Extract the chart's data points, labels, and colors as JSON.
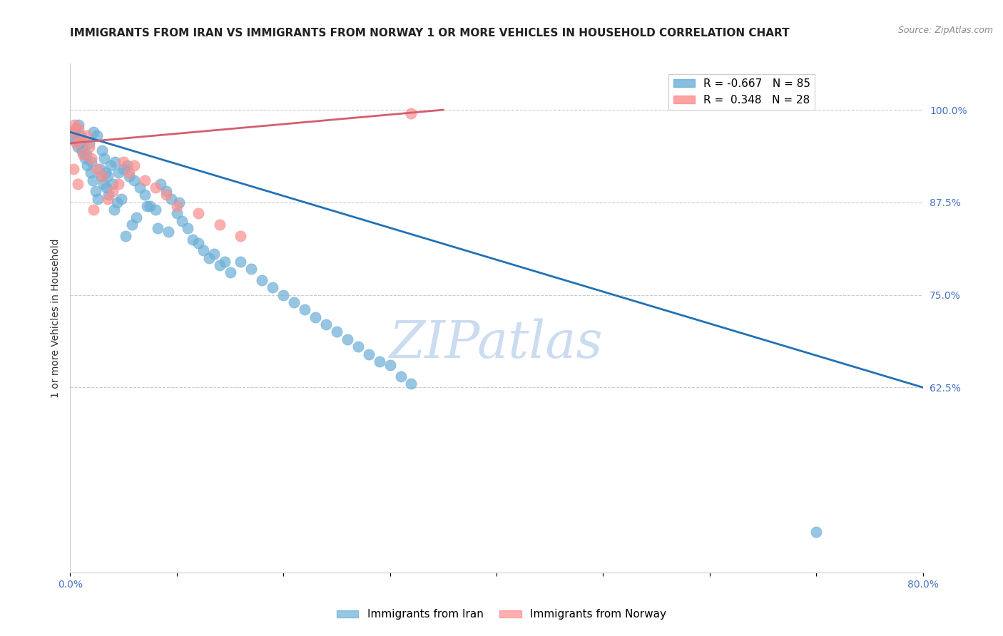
{
  "title": "IMMIGRANTS FROM IRAN VS IMMIGRANTS FROM NORWAY 1 OR MORE VEHICLES IN HOUSEHOLD CORRELATION CHART",
  "source": "Source: ZipAtlas.com",
  "ylabel": "1 or more Vehicles in Household",
  "x_ticks": [
    0.0,
    10.0,
    20.0,
    30.0,
    40.0,
    50.0,
    60.0,
    70.0,
    80.0
  ],
  "y_ticks_right": [
    62.5,
    75.0,
    87.5,
    100.0
  ],
  "iran_R": -0.667,
  "iran_N": 85,
  "norway_R": 0.348,
  "norway_N": 28,
  "iran_color": "#6baed6",
  "norway_color": "#fc8d8d",
  "iran_line_color": "#2171b5",
  "norway_line_color": "#d45f6e",
  "watermark": "ZIPatlas",
  "watermark_color": "#c6d9f0",
  "background_color": "#ffffff",
  "grid_color": "#cccccc",
  "legend_label_iran": "Immigrants from Iran",
  "legend_label_norway": "Immigrants from Norway",
  "iran_scatter_x": [
    0.3,
    0.5,
    0.8,
    1.0,
    1.2,
    1.5,
    1.8,
    2.0,
    2.2,
    2.5,
    2.8,
    3.0,
    3.2,
    3.5,
    3.8,
    4.0,
    4.2,
    4.5,
    4.8,
    5.0,
    5.5,
    6.0,
    6.5,
    7.0,
    7.5,
    8.0,
    8.5,
    9.0,
    9.5,
    10.0,
    10.5,
    11.0,
    12.0,
    13.0,
    14.0,
    15.0,
    16.0,
    17.0,
    18.0,
    19.0,
    20.0,
    21.0,
    22.0,
    23.0,
    24.0,
    25.0,
    26.0,
    27.0,
    28.0,
    29.0,
    30.0,
    31.0,
    32.0,
    0.4,
    0.6,
    0.9,
    1.1,
    1.4,
    1.6,
    1.9,
    2.1,
    2.4,
    2.6,
    2.9,
    3.1,
    3.4,
    3.6,
    4.1,
    4.4,
    5.2,
    5.8,
    6.2,
    7.2,
    8.2,
    9.2,
    10.2,
    11.5,
    12.5,
    13.5,
    14.5,
    70.0,
    0.7,
    1.3,
    3.3,
    5.3
  ],
  "iran_scatter_y": [
    96.0,
    97.5,
    98.0,
    96.5,
    95.0,
    94.0,
    95.5,
    93.0,
    97.0,
    96.5,
    92.0,
    94.5,
    93.5,
    91.0,
    92.5,
    90.0,
    93.0,
    91.5,
    88.0,
    92.0,
    91.0,
    90.5,
    89.5,
    88.5,
    87.0,
    86.5,
    90.0,
    89.0,
    88.0,
    86.0,
    85.0,
    84.0,
    82.0,
    80.0,
    79.0,
    78.0,
    79.5,
    78.5,
    77.0,
    76.0,
    75.0,
    74.0,
    73.0,
    72.0,
    71.0,
    70.0,
    69.0,
    68.0,
    67.0,
    66.0,
    65.5,
    64.0,
    63.0,
    97.0,
    96.0,
    95.5,
    94.5,
    93.5,
    92.5,
    91.5,
    90.5,
    89.0,
    88.0,
    91.0,
    90.0,
    89.5,
    88.5,
    86.5,
    87.5,
    83.0,
    84.5,
    85.5,
    87.0,
    84.0,
    83.5,
    87.5,
    82.5,
    81.0,
    80.5,
    79.5,
    43.0,
    95.0,
    94.0,
    91.5,
    92.5
  ],
  "norway_scatter_x": [
    0.2,
    0.4,
    0.6,
    0.8,
    1.0,
    1.2,
    1.5,
    1.8,
    2.0,
    2.5,
    3.0,
    3.5,
    4.0,
    4.5,
    5.0,
    5.5,
    6.0,
    7.0,
    8.0,
    9.0,
    10.0,
    12.0,
    14.0,
    16.0,
    32.0,
    0.3,
    0.7,
    2.2
  ],
  "norway_scatter_y": [
    97.0,
    98.0,
    95.5,
    97.5,
    96.0,
    94.0,
    96.5,
    95.0,
    93.5,
    92.0,
    91.0,
    88.0,
    89.0,
    90.0,
    93.0,
    91.5,
    92.5,
    90.5,
    89.5,
    88.5,
    87.0,
    86.0,
    84.5,
    83.0,
    99.5,
    92.0,
    90.0,
    86.5
  ],
  "iran_trend_x": [
    0.0,
    80.0
  ],
  "iran_trend_y": [
    97.0,
    62.5
  ],
  "norway_trend_x": [
    0.0,
    35.0
  ],
  "norway_trend_y": [
    95.5,
    100.0
  ],
  "title_fontsize": 11,
  "axis_tick_fontsize": 10,
  "right_tick_color": "#4472c4",
  "bottom_tick_color": "#4472c4"
}
